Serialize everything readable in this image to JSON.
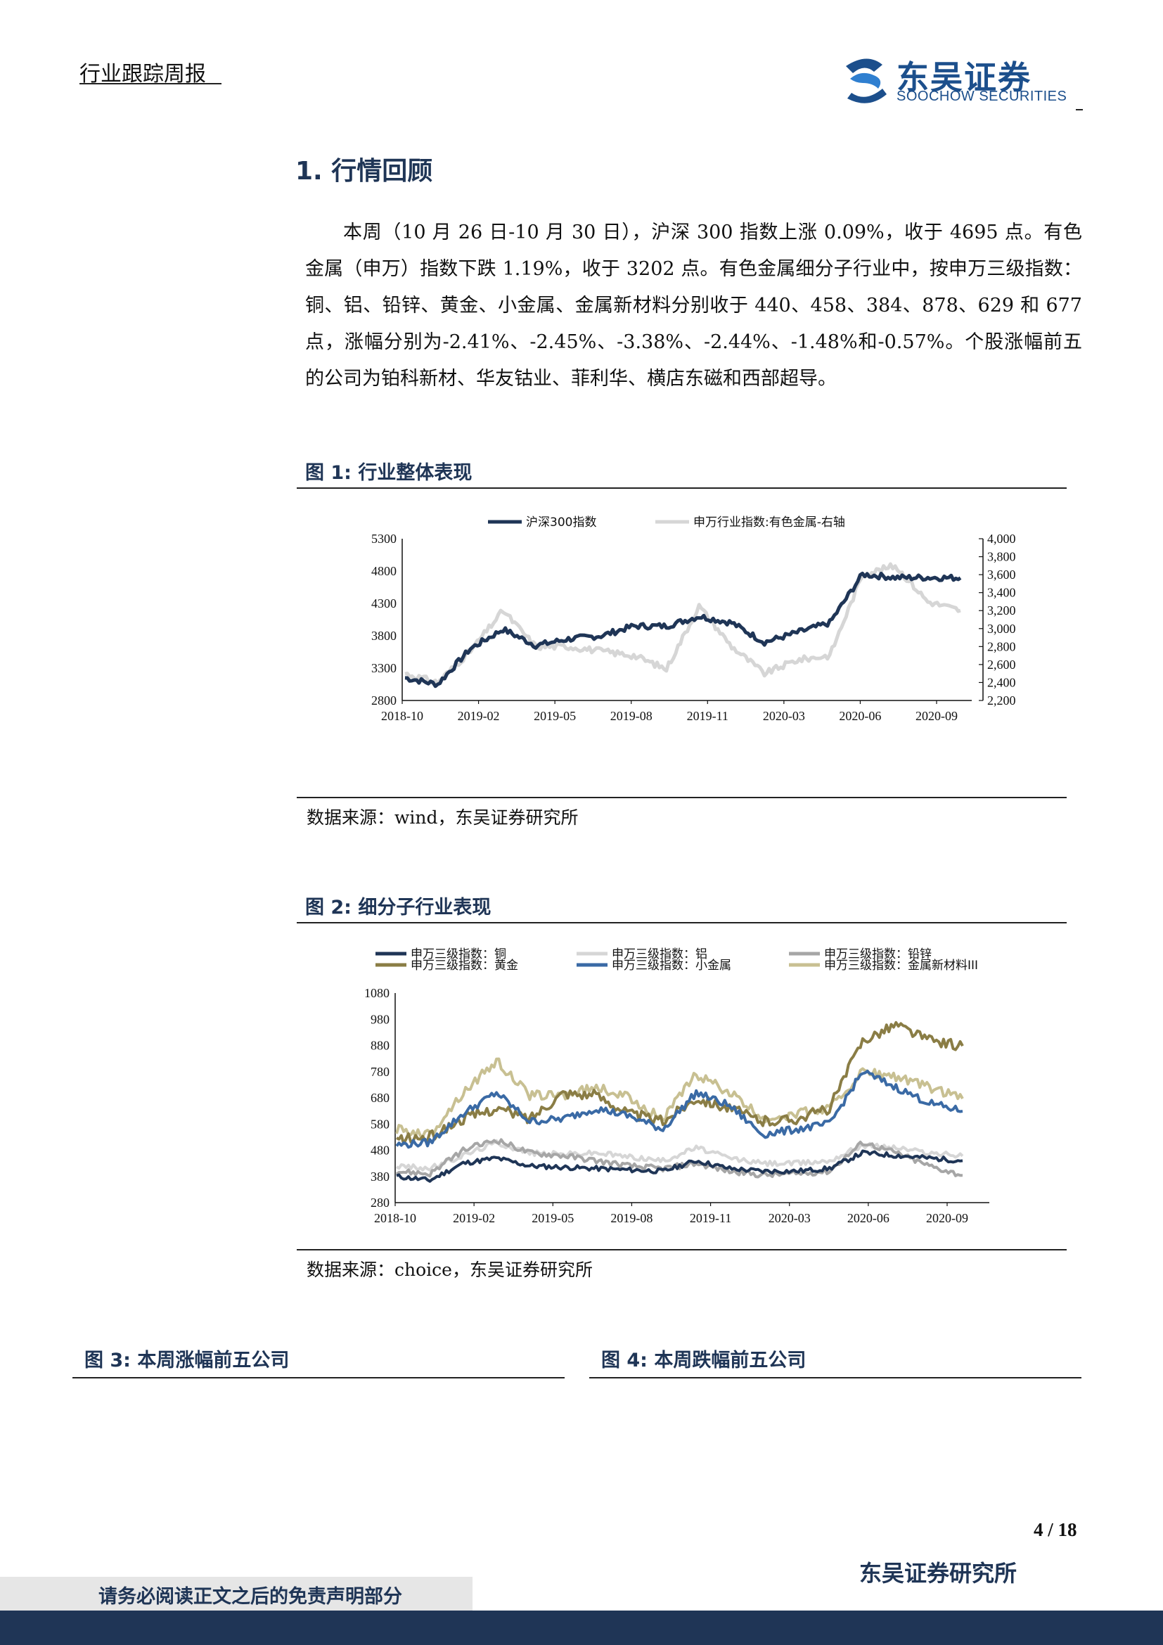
{
  "header": {
    "title": "行业跟踪周报",
    "logo_cn": "东吴证券",
    "logo_en": "SOOCHOW SECURITIES",
    "logo_mark": "SCS"
  },
  "section": {
    "title": "1.  行情回顾"
  },
  "paragraph": [
    "本周（10 月 26 日-10 月 30 日），沪深 300 指数上涨 0.09%，收于 4695 点。有色金属（申万）指数下跌 1.19%，收于 3202 点。有色金属细分子行业中，按申万三级指数：铜、铝、铅锌、黄金、小金属、金属新材料分别收于 440、458、384、878、629 和 677 点，涨幅分别为-2.41%、-2.45%、-3.38%、-2.44%、-1.48%和-0.57%。个股涨幅前五的公司为铂科新材、华友钴业、菲利华、横店东磁和西部超导。"
  ],
  "figure1": {
    "title": "图 1:  行业整体表现",
    "source": "数据来源：wind，东吴证券研究所"
  },
  "figure2": {
    "title": "图 2:  细分子行业表现",
    "source": "数据来源：choice，东吴证券研究所"
  },
  "figure3": {
    "title": "图 3:  本周涨幅前五公司"
  },
  "figure4": {
    "title": "图 4:  本周跌幅前五公司"
  },
  "footer": {
    "page": "4 / 18",
    "institute": "东吴证券研究所",
    "disclaimer": "请务必阅读正文之后的免责声明部分"
  },
  "colors": {
    "navy": "#1f3556",
    "gray_light": "#d6d6d6",
    "blue": "#3a6aa5",
    "olive": "#8a7d45",
    "gray_mid": "#a6a6a6",
    "khaki": "#c8c092"
  },
  "chart_data": [
    {
      "type": "line",
      "x": [
        "2018-10",
        "2019-01",
        "2019-02",
        "2019-04",
        "2019-05",
        "2019-07",
        "2019-08",
        "2019-10",
        "2019-11",
        "2020-01",
        "2020-02",
        "2020-03",
        "2020-05",
        "2020-06",
        "2020-07",
        "2020-08",
        "2020-09",
        "2020-10"
      ],
      "xticks": [
        "2018-10",
        "2019-02",
        "2019-05",
        "2019-08",
        "2019-11",
        "2020-03",
        "2020-06",
        "2020-09"
      ],
      "series": [
        {
          "name": "沪深300指数",
          "axis": "left",
          "values": [
            3150,
            3050,
            3600,
            3900,
            3650,
            3750,
            3800,
            3950,
            3950,
            4100,
            4000,
            3700,
            3850,
            4000,
            4750,
            4700,
            4700,
            4695
          ]
        },
        {
          "name": "申万行业指数:有色金属-右轴",
          "axis": "right",
          "values": [
            2500,
            2400,
            2750,
            3200,
            2800,
            2800,
            2750,
            2700,
            2550,
            3250,
            2800,
            2500,
            2650,
            2700,
            3600,
            3700,
            3300,
            3202
          ]
        }
      ],
      "yleft": {
        "ticks": [
          2800,
          3300,
          3800,
          4300,
          4800,
          5300
        ],
        "range": [
          2800,
          5300
        ]
      },
      "yright": {
        "ticks": [
          "2,200",
          "2,400",
          "2,600",
          "2,800",
          "3,000",
          "3,200",
          "3,400",
          "3,600",
          "3,800",
          "4,000"
        ],
        "range": [
          2200,
          4000
        ]
      },
      "legend": "top"
    },
    {
      "type": "line",
      "x": [
        "2018-10",
        "2019-01",
        "2019-02",
        "2019-04",
        "2019-05",
        "2019-07",
        "2019-08",
        "2019-10",
        "2019-11",
        "2020-01",
        "2020-02",
        "2020-03",
        "2020-05",
        "2020-06",
        "2020-07",
        "2020-08",
        "2020-09",
        "2020-10"
      ],
      "xticks": [
        "2018-10",
        "2019-02",
        "2019-05",
        "2019-08",
        "2019-11",
        "2020-03",
        "2020-06",
        "2020-09"
      ],
      "series": [
        {
          "name": "申万三级指数：铜",
          "values": [
            380,
            365,
            430,
            450,
            420,
            415,
            410,
            405,
            400,
            440,
            410,
            400,
            400,
            410,
            470,
            460,
            450,
            440
          ]
        },
        {
          "name": "申万三级指数：铝",
          "values": [
            420,
            410,
            460,
            510,
            470,
            465,
            470,
            455,
            440,
            490,
            450,
            430,
            430,
            440,
            500,
            490,
            470,
            458
          ]
        },
        {
          "name": "申万三级指数：铅锌",
          "values": [
            400,
            390,
            480,
            520,
            470,
            460,
            440,
            420,
            410,
            430,
            400,
            385,
            390,
            400,
            510,
            470,
            420,
            384
          ]
        },
        {
          "name": "申万三级指数：黄金",
          "values": [
            520,
            530,
            600,
            640,
            600,
            700,
            690,
            620,
            590,
            680,
            640,
            590,
            600,
            640,
            900,
            960,
            900,
            878
          ]
        },
        {
          "name": "申万三级指数：小金属",
          "values": [
            500,
            510,
            620,
            700,
            590,
            600,
            640,
            610,
            560,
            700,
            650,
            540,
            560,
            580,
            780,
            720,
            660,
            629
          ]
        },
        {
          "name": "申万三级指数：金属新材料III",
          "values": [
            560,
            540,
            700,
            820,
            690,
            690,
            720,
            680,
            600,
            770,
            700,
            600,
            620,
            640,
            780,
            760,
            720,
            677
          ]
        }
      ],
      "y": {
        "ticks": [
          280,
          380,
          480,
          580,
          680,
          780,
          880,
          980,
          1080
        ],
        "range": [
          280,
          1080
        ]
      },
      "legend": "top"
    }
  ]
}
